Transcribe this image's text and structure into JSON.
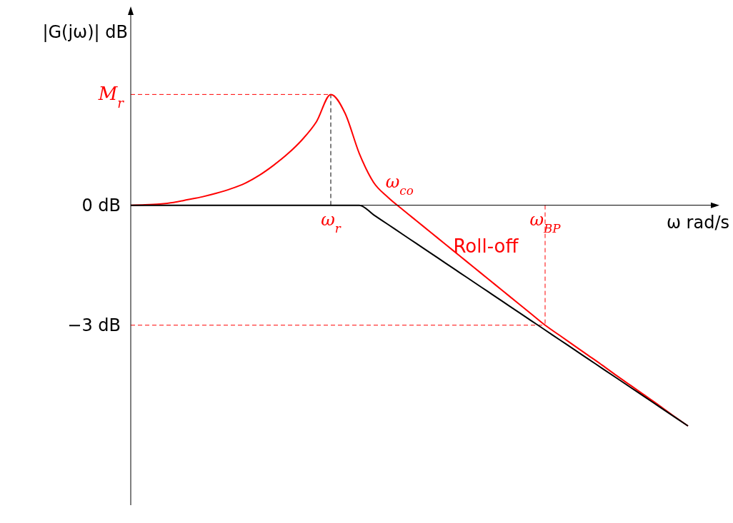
{
  "chart_data": {
    "type": "line",
    "xlabel": "ω rad/s",
    "ylabel": "|G(jω)| dB",
    "categories": [
      null,
      null,
      null,
      null,
      null,
      null,
      null,
      null,
      null,
      null,
      null,
      null,
      null,
      null,
      "ω$_{r}$",
      null,
      null,
      null,
      null,
      null,
      null,
      null,
      null,
      null,
      null,
      null,
      null,
      null,
      null,
      "ω$_{BP}$",
      null,
      null,
      null,
      null,
      null,
      null,
      null,
      null,
      null,
      null,
      null,
      null
    ],
    "series": [
      {
        "color": "#ff0000",
        "values": [
          0,
          0.01,
          0.03,
          0.07,
          0.14,
          0.21,
          0.3,
          0.41,
          0.55,
          0.75,
          1.0,
          1.29,
          1.64,
          2.09,
          2.77,
          2.3,
          1.29,
          0.57,
          0.2,
          -0.1,
          -0.39,
          -0.68,
          -0.97,
          -1.26,
          -1.55,
          -1.84,
          -2.13,
          -2.42,
          -2.71,
          -3.0,
          -3.25,
          -3.5,
          -3.75,
          -4.0,
          -4.26,
          -4.51,
          -4.76,
          -5.01,
          -5.27,
          -5.52,
          null,
          null
        ]
      },
      {
        "color": "#000000",
        "values": [
          0,
          0,
          0,
          0,
          0,
          0,
          0,
          0,
          0,
          0,
          0,
          0,
          0,
          0,
          0,
          0,
          0,
          -0.24,
          -0.48,
          -0.72,
          -0.96,
          -1.2,
          -1.44,
          -1.68,
          -1.92,
          -2.16,
          -2.4,
          -2.64,
          -2.88,
          -3.12,
          -3.36,
          -3.6,
          -3.84,
          -4.08,
          -4.32,
          -4.56,
          -4.8,
          -5.04,
          -5.28,
          -5.52,
          null,
          null
        ]
      }
    ],
    "ylim": [
      -7.5,
      4.9
    ],
    "yticks": [
      {
        "value": 0,
        "label": "0 dB"
      },
      {
        "value": -3,
        "label": "−3 dB"
      }
    ],
    "ref_lines": [
      {
        "axis": "y",
        "value": 2.77,
        "label": "M$_{r}$",
        "color": "#ff0000",
        "line_style": "dashed"
      },
      {
        "axis": "y",
        "value": -3,
        "color": "#ff0000",
        "line_style": "dashed"
      },
      {
        "axis": "x",
        "value": "ω$_{r}$",
        "color": "#000000",
        "line_style": "dashed"
      },
      {
        "axis": "x",
        "value": "ω$_{BP}$",
        "color": "#ff0000",
        "line_style": "dashed"
      }
    ],
    "annotations": [
      "ω$_{co}$",
      "Roll-off"
    ],
    "grid": false
  }
}
